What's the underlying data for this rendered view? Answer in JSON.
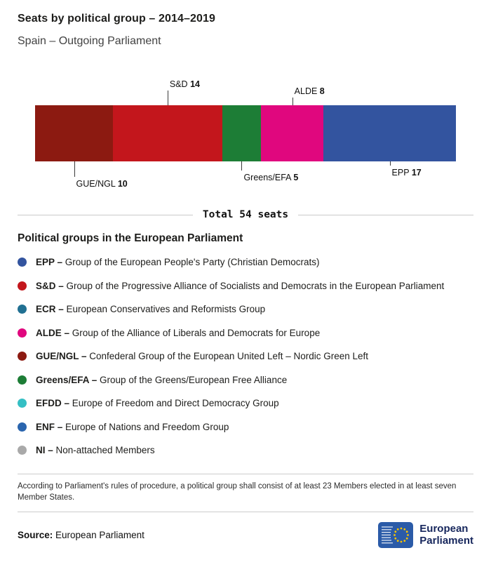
{
  "header": {
    "title": "Seats by political group – 2014–2019",
    "subtitle": "Spain – Outgoing Parliament"
  },
  "chart_data": {
    "type": "bar",
    "variant": "horizontal-stacked",
    "title": "Seats by political group – 2014–2019",
    "subtitle": "Spain – Outgoing Parliament",
    "total": 54,
    "total_label": "Total 54 seats",
    "segments": [
      {
        "group": "GUE/NGL",
        "seats": 10,
        "color": "#8c1a11",
        "label_position": "below",
        "tick": 22
      },
      {
        "group": "S&D",
        "seats": 14,
        "color": "#c3161c",
        "label_position": "above",
        "tick": 21
      },
      {
        "group": "Greens/EFA",
        "seats": 5,
        "color": "#1d7d36",
        "label_position": "below",
        "tick": 13
      },
      {
        "group": "ALDE",
        "seats": 8,
        "color": "#e0077e",
        "label_position": "above",
        "tick": 11
      },
      {
        "group": "EPP",
        "seats": 17,
        "color": "#33549f",
        "label_position": "below",
        "tick": 6
      }
    ]
  },
  "legend": {
    "title": "Political groups in the European Parliament",
    "items": [
      {
        "abbr": "EPP",
        "name": "Group of the European People's Party (Christian Democrats)",
        "color": "#33549f"
      },
      {
        "abbr": "S&D",
        "name": "Group of the Progressive Alliance of Socialists and Democrats in the European Parliament",
        "color": "#c3161c"
      },
      {
        "abbr": "ECR",
        "name": "European Conservatives and Reformists Group",
        "color": "#217092"
      },
      {
        "abbr": "ALDE",
        "name": "Group of the Alliance of Liberals and Democrats for Europe",
        "color": "#e0077e"
      },
      {
        "abbr": "GUE/NGL",
        "name": "Confederal Group of the European United Left – Nordic Green Left",
        "color": "#8c1a11"
      },
      {
        "abbr": "Greens/EFA",
        "name": "Group of the Greens/European Free Alliance",
        "color": "#1d7d36"
      },
      {
        "abbr": "EFDD",
        "name": "Europe of Freedom and Direct Democracy Group",
        "color": "#35bfc4"
      },
      {
        "abbr": "ENF",
        "name": "Europe of Nations and Freedom Group",
        "color": "#2a65ae"
      },
      {
        "abbr": "NI",
        "name": "Non-attached Members",
        "color": "#a9a9a9"
      }
    ]
  },
  "note": "According to Parliament's rules of procedure, a political group shall consist of at least 23 Members elected in at least seven Member States.",
  "source": {
    "label": "Source:",
    "value": "European Parliament"
  },
  "logo": {
    "line1": "European",
    "line2": "Parliament"
  }
}
